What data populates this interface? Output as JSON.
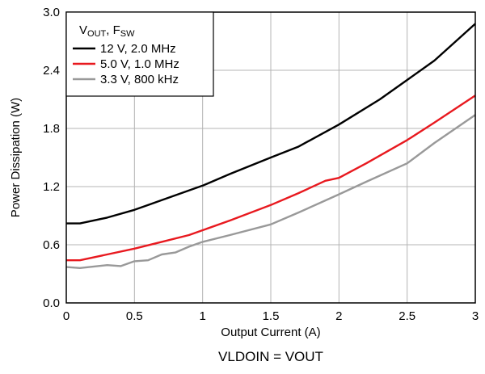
{
  "chart_data": {
    "type": "line",
    "xlabel": "Output Current (A)",
    "ylabel": "Power Dissipation (W)",
    "caption": "VLDOIN = VOUT",
    "xlim": [
      0,
      3
    ],
    "ylim": [
      0,
      3
    ],
    "x_ticks": [
      0,
      0.5,
      1,
      1.5,
      2,
      2.5,
      3
    ],
    "x_tick_labels": [
      "0",
      "0.5",
      "1",
      "1.5",
      "2",
      "2.5",
      "3"
    ],
    "y_ticks": [
      0,
      0.6,
      1.2,
      1.8,
      2.4,
      3.0
    ],
    "y_tick_labels": [
      "0.0",
      "0.6",
      "1.2",
      "1.8",
      "2.4",
      "3.0"
    ],
    "grid": true,
    "legend": {
      "placement": "top-left",
      "title_main": "V",
      "title_sub1": "OUT",
      "title_sep": ", F",
      "title_sub2": "SW"
    },
    "series": [
      {
        "name": "12 V, 2.0 MHz",
        "color": "#000000",
        "x": [
          0,
          0.1,
          0.3,
          0.5,
          0.7,
          0.9,
          1.0,
          1.2,
          1.5,
          1.7,
          2.0,
          2.3,
          2.5,
          2.7,
          3.0
        ],
        "y": [
          0.82,
          0.82,
          0.88,
          0.96,
          1.06,
          1.16,
          1.21,
          1.33,
          1.5,
          1.61,
          1.84,
          2.1,
          2.3,
          2.5,
          2.88
        ]
      },
      {
        "name": "5.0 V, 1.0 MHz",
        "color": "#e8191f",
        "x": [
          0,
          0.1,
          0.3,
          0.5,
          0.7,
          0.9,
          1.0,
          1.2,
          1.5,
          1.7,
          1.9,
          2.0,
          2.2,
          2.5,
          2.7,
          3.0
        ],
        "y": [
          0.44,
          0.44,
          0.5,
          0.56,
          0.63,
          0.7,
          0.75,
          0.85,
          1.01,
          1.13,
          1.26,
          1.29,
          1.44,
          1.68,
          1.86,
          2.14
        ]
      },
      {
        "name": "3.3 V, 800 kHz",
        "color": "#999999",
        "x": [
          0,
          0.1,
          0.3,
          0.4,
          0.5,
          0.6,
          0.7,
          0.8,
          0.9,
          1.0,
          1.2,
          1.5,
          1.7,
          2.0,
          2.2,
          2.5,
          2.7,
          3.0
        ],
        "y": [
          0.37,
          0.36,
          0.39,
          0.38,
          0.43,
          0.44,
          0.5,
          0.52,
          0.58,
          0.63,
          0.7,
          0.81,
          0.93,
          1.12,
          1.25,
          1.44,
          1.65,
          1.94
        ]
      }
    ]
  }
}
